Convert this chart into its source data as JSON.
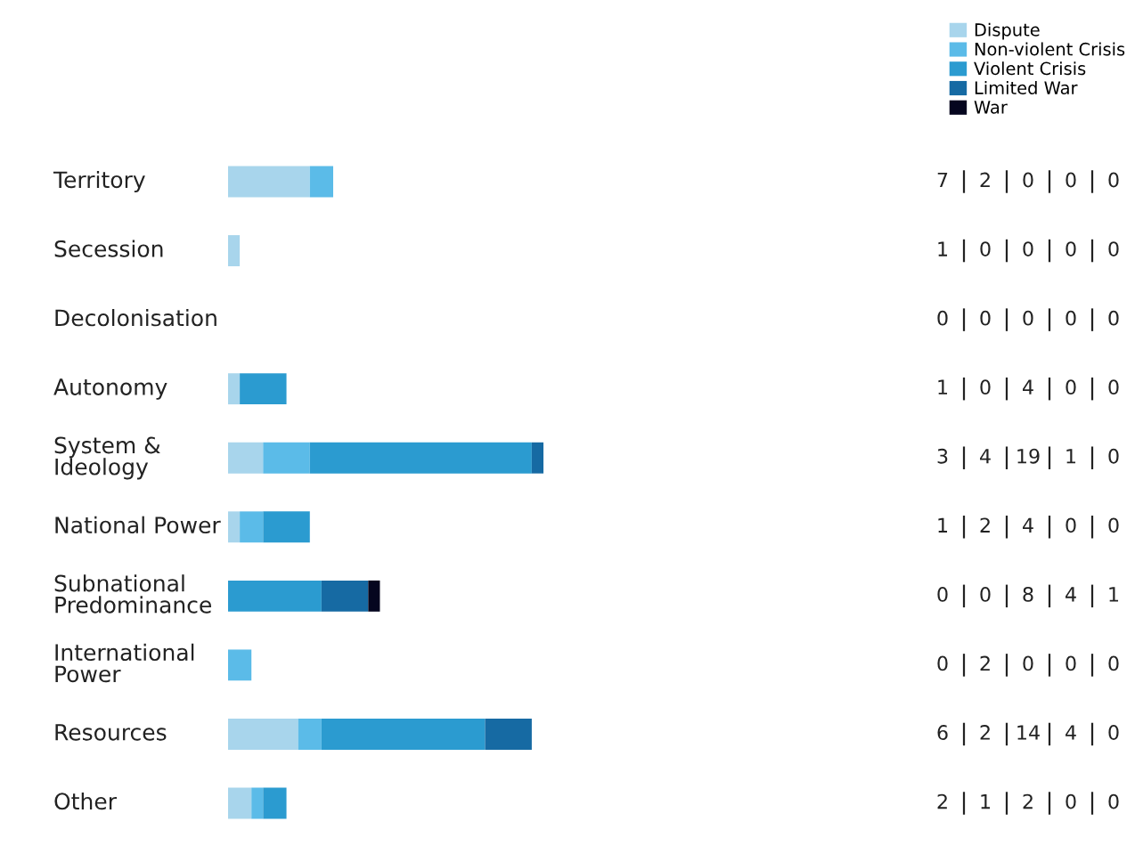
{
  "chart_data": {
    "type": "bar",
    "orientation": "horizontal",
    "stacked": true,
    "data_labels": true,
    "legend": "top right",
    "categories": [
      "Territory",
      "Secession",
      "Decolonisation",
      "Autonomy",
      "System &\nIdeology",
      "National Power",
      "Subnational\nPredominance",
      "International\nPower",
      "Resources",
      "Other"
    ],
    "series": [
      {
        "name": "Dispute",
        "color": "#a8d5ec",
        "values": [
          7,
          1,
          0,
          1,
          3,
          1,
          0,
          0,
          6,
          2
        ]
      },
      {
        "name": "Non-violent Crisis",
        "color": "#5bbbe8",
        "values": [
          2,
          0,
          0,
          0,
          4,
          2,
          0,
          2,
          2,
          1
        ]
      },
      {
        "name": "Violent Crisis",
        "color": "#2b9bd0",
        "values": [
          0,
          0,
          0,
          4,
          19,
          4,
          8,
          0,
          14,
          2
        ]
      },
      {
        "name": "Limited War",
        "color": "#166aa3",
        "values": [
          0,
          0,
          0,
          0,
          1,
          0,
          4,
          0,
          4,
          0
        ]
      },
      {
        "name": "War",
        "color": "#05061f",
        "values": [
          0,
          0,
          0,
          0,
          0,
          0,
          1,
          0,
          0,
          0
        ]
      }
    ]
  }
}
